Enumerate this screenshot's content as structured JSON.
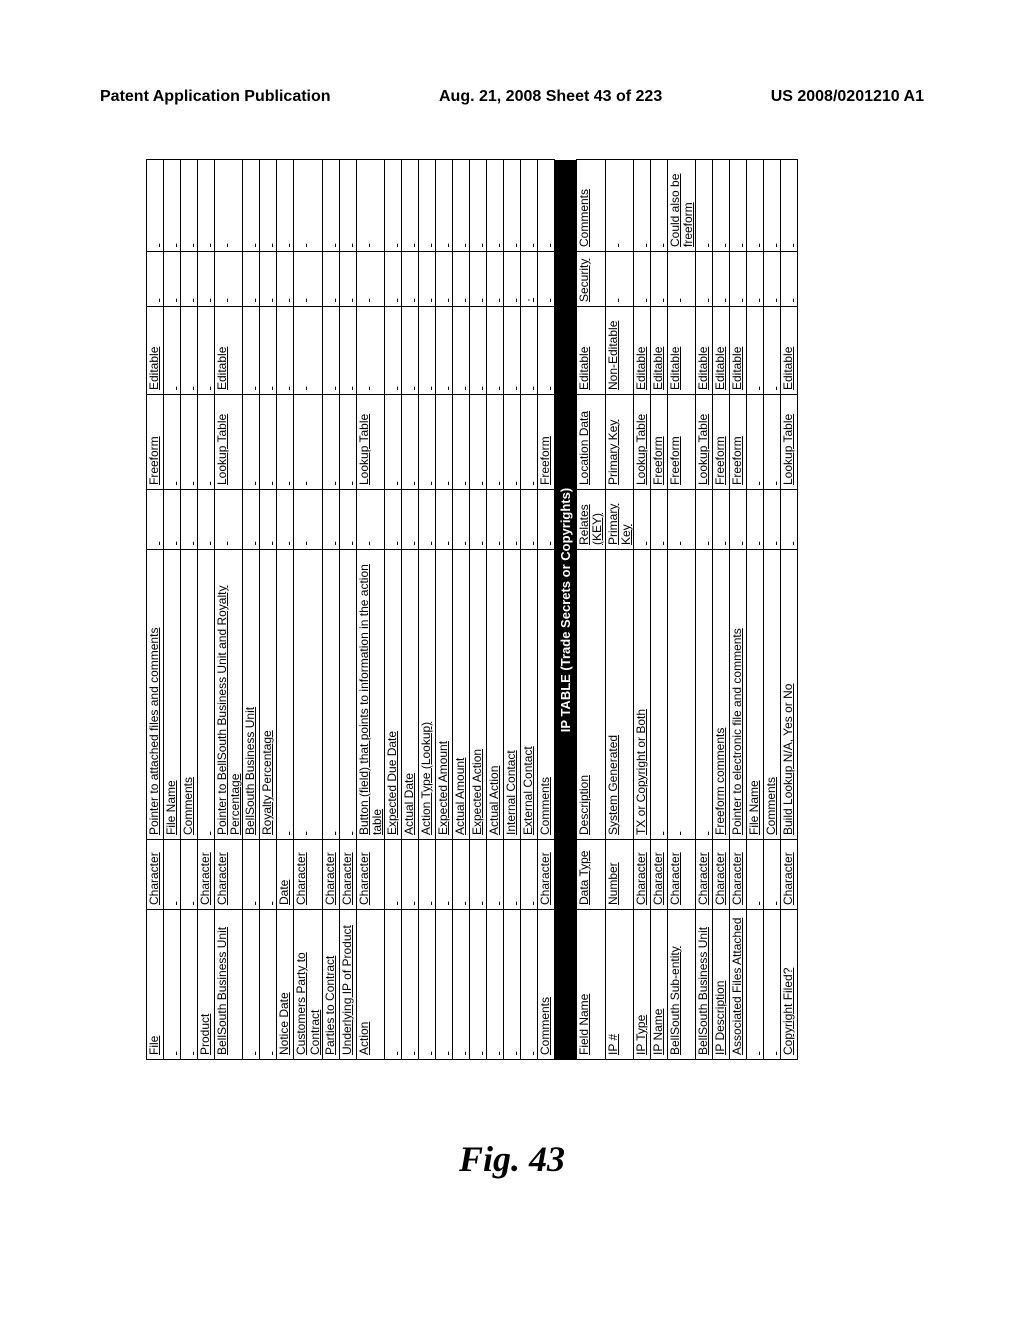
{
  "header": {
    "left": "Patent Application Publication",
    "mid": "Aug. 21, 2008  Sheet 43 of 223",
    "right": "US 2008/0201210 A1"
  },
  "figure_label": "Fig. 43",
  "section_bar": "IP TABLE (Trade Secrets or Copyrights)",
  "tableA": {
    "cols": [
      "c1",
      "c2",
      "c3",
      "c4",
      "c5",
      "c6",
      "c7",
      "c8"
    ],
    "rows": [
      [
        "File",
        "Character",
        "Pointer to attached files and comments",
        "",
        "Freeform",
        "Editable",
        "",
        ""
      ],
      [
        "",
        "",
        "File Name",
        "",
        "",
        "",
        "",
        ""
      ],
      [
        "",
        "",
        "Comments",
        "",
        "",
        "",
        "",
        ""
      ],
      [
        "Product",
        "Character",
        "",
        "",
        "",
        "",
        "",
        ""
      ],
      [
        "BellSouth Business Unit",
        "Character",
        "Pointer to BellSouth Business Unit and Royalty Percentage",
        "",
        "Lookup Table",
        "Editable",
        "",
        ""
      ],
      [
        "",
        "",
        "BellSouth Business Unit",
        "",
        "",
        "",
        "",
        ""
      ],
      [
        "",
        "",
        "Royalty Percentage",
        "",
        "",
        "",
        "",
        ""
      ],
      [
        "Notice Date",
        "Date",
        "",
        "",
        "",
        "",
        "",
        ""
      ],
      [
        "Customers Party to Contract",
        "Character",
        "",
        "",
        "",
        "",
        "",
        ""
      ],
      [
        "Parties to Contract",
        "Character",
        "",
        "",
        "",
        "",
        "",
        ""
      ],
      [
        "Underlying IP of Product",
        "Character",
        "",
        "",
        "",
        "",
        "",
        ""
      ],
      [
        "Action",
        "Character",
        "Button (field) that points to information in the action table",
        "",
        "Lookup Table",
        "",
        "",
        ""
      ],
      [
        "",
        "",
        "Expected Due Date",
        "",
        "",
        "",
        "",
        ""
      ],
      [
        "",
        "",
        "Actual Date",
        "",
        "",
        "",
        "",
        ""
      ],
      [
        "",
        "",
        "Action Type (Lookup)",
        "",
        "",
        "",
        "",
        ""
      ],
      [
        "",
        "",
        "Expected Amount",
        "",
        "",
        "",
        "",
        ""
      ],
      [
        "",
        "",
        "Actual Amount",
        "",
        "",
        "",
        "",
        ""
      ],
      [
        "",
        "",
        "Expected Action",
        "",
        "",
        "",
        "",
        ""
      ],
      [
        "",
        "",
        "Actual Action",
        "",
        "",
        "",
        "",
        ""
      ],
      [
        "",
        "",
        "Internal Contact",
        "",
        "",
        "",
        "",
        ""
      ],
      [
        "",
        "",
        "External Contact",
        "",
        "",
        "",
        "·",
        ""
      ],
      [
        "Comments",
        "Character",
        "Comments",
        "",
        "Freeform",
        "",
        "",
        ""
      ]
    ]
  },
  "tableB": {
    "cols": [
      "c1",
      "c2",
      "c3",
      "c4",
      "c5",
      "c6",
      "c7",
      "c8"
    ],
    "head": [
      "Field Name",
      "Data Type",
      "Description",
      "Relates (KEY)",
      "Location  Data",
      "Editable",
      "Security",
      "Comments"
    ],
    "rows": [
      [
        "IP #",
        "Number",
        "System Generated",
        "Primary Key",
        "Primary Key",
        "Non-Editable",
        "",
        ""
      ],
      [
        "IP Type",
        "Character",
        "TX or Copyright or Both",
        "",
        "Lookup Table",
        "Editable",
        "",
        ""
      ],
      [
        "IP Name",
        "Character",
        "",
        "",
        "Freeform",
        "Editable",
        "",
        ""
      ],
      [
        "BellSouth Sub-entity",
        "Character",
        "",
        "",
        "Freeform",
        "Editable",
        "",
        "Could also be freeform"
      ],
      [
        "BellSouth Business Unit",
        "Character",
        "",
        "",
        "Lookup Table",
        "Editable",
        "",
        ""
      ],
      [
        "IP Description",
        "Character",
        "Freeform comments",
        "",
        "Freeform",
        "Editable",
        "",
        ""
      ],
      [
        "Associated Files Attached",
        "Character",
        "Pointer to electronic file and comments",
        "",
        "Freeform",
        "Editable",
        "",
        ""
      ],
      [
        "",
        "",
        "File Name",
        "",
        "",
        "",
        "",
        ""
      ],
      [
        "",
        "",
        "Comments",
        "",
        "",
        "",
        "",
        ""
      ],
      [
        "Copyright Filed?",
        "Character",
        "Build Lookup N/A, Yes or No",
        "",
        "Lookup Table",
        "Editable",
        "",
        ""
      ]
    ]
  }
}
